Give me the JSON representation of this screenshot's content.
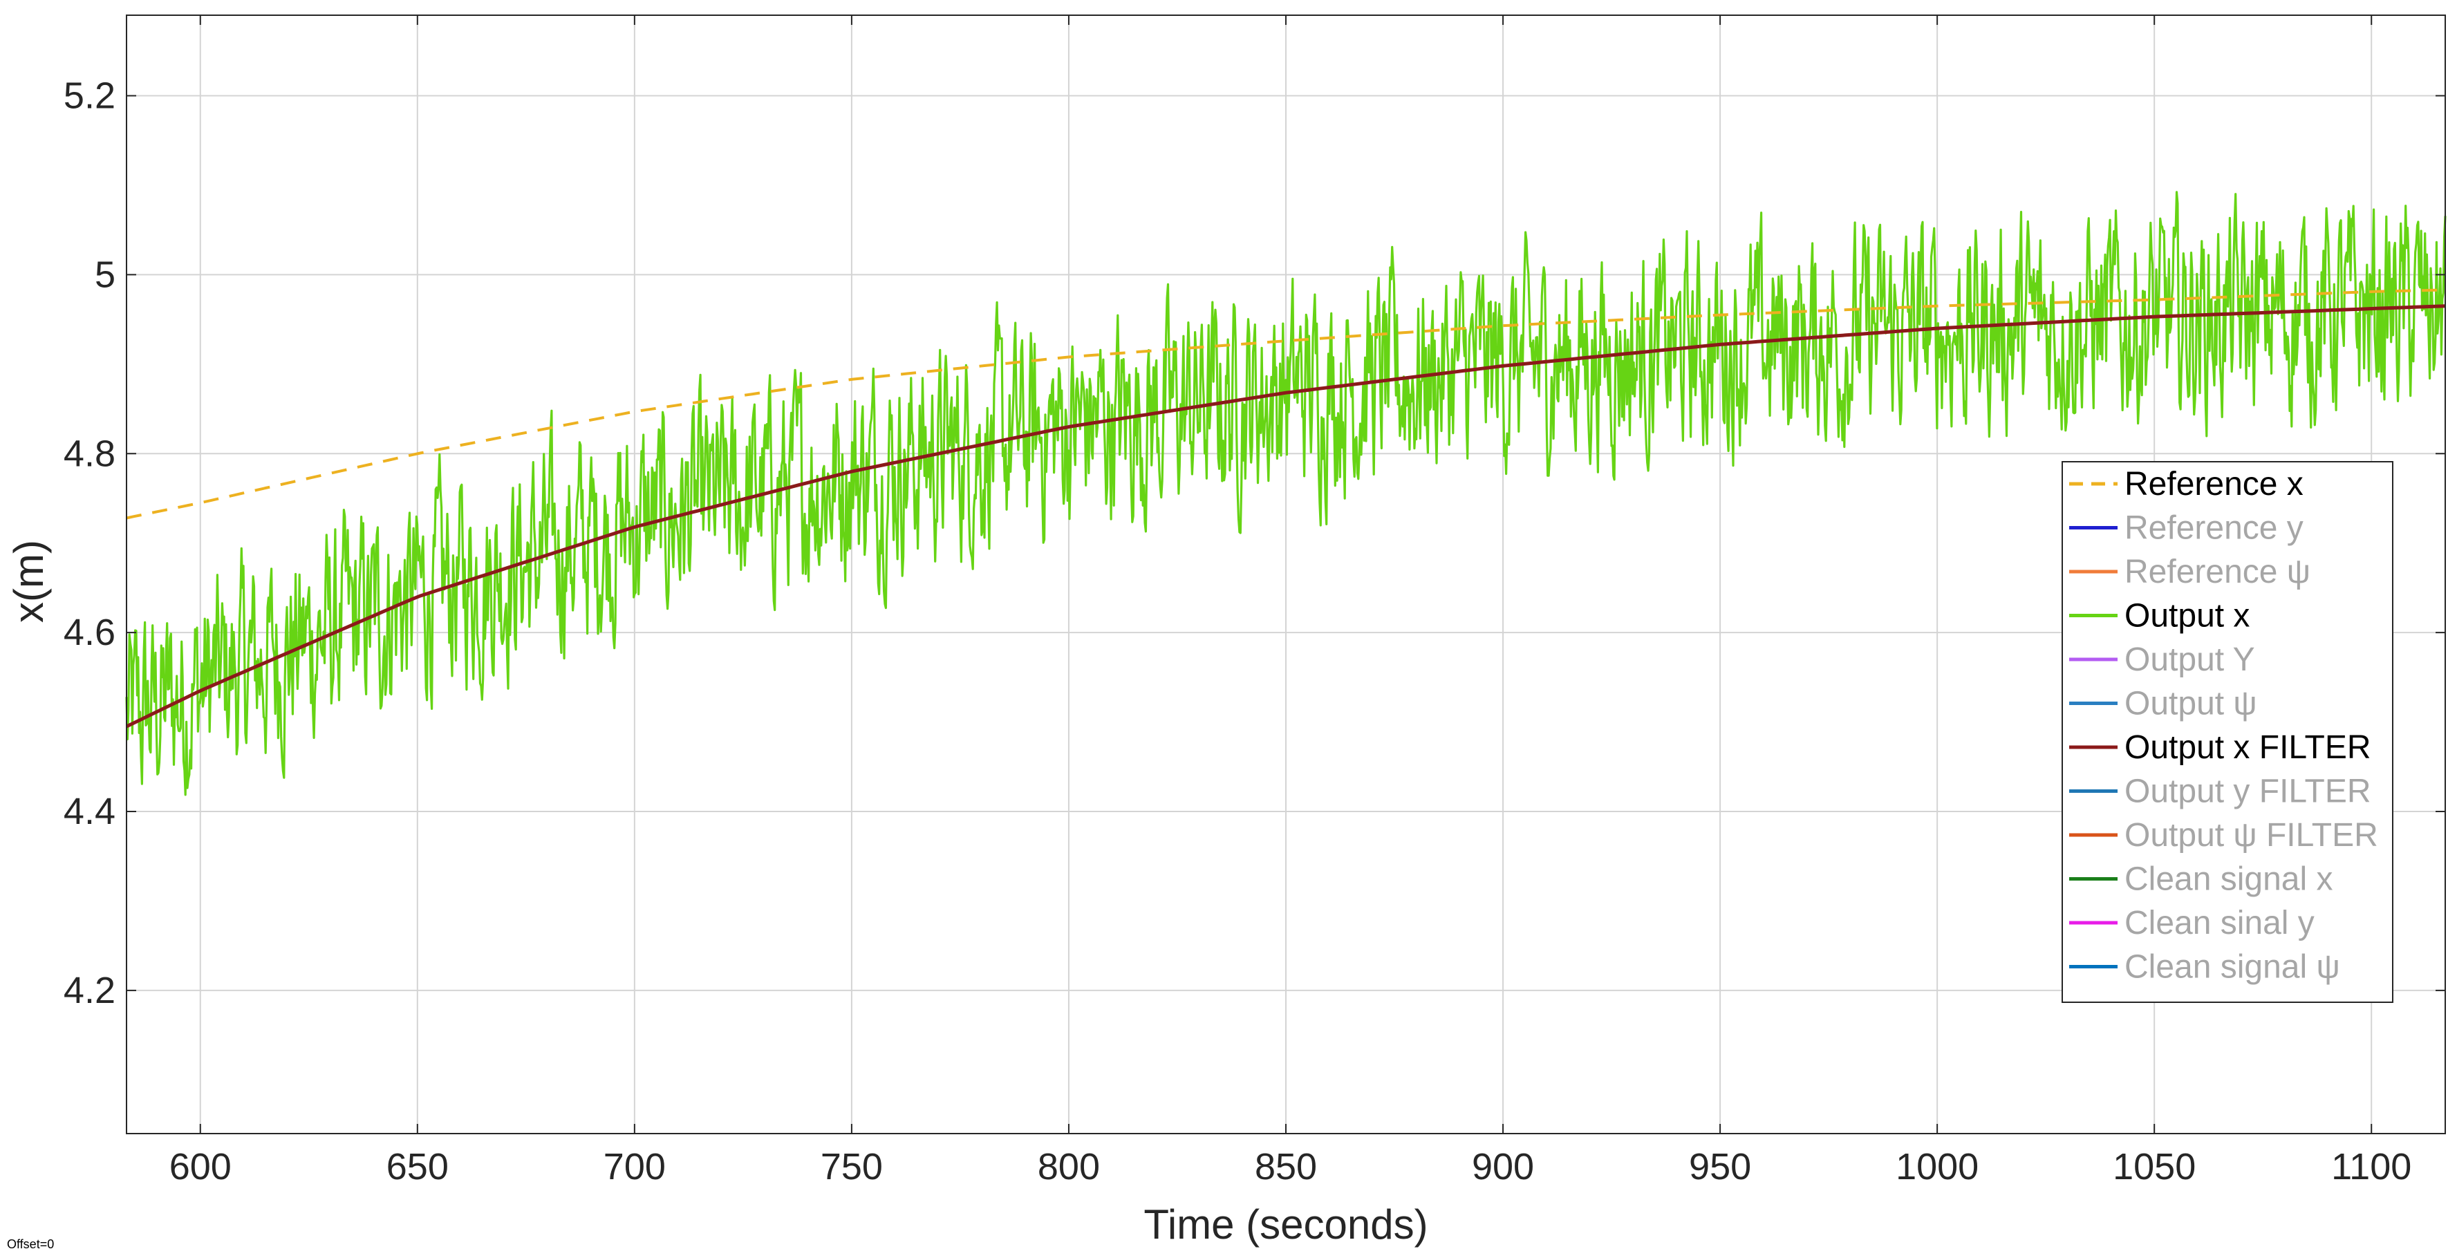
{
  "chart_data": {
    "type": "line",
    "xlabel": "Time (seconds)",
    "ylabel": "x(m)",
    "xlim": [
      583,
      1117
    ],
    "ylim": [
      4.04,
      5.29
    ],
    "x_ticks": [
      600,
      650,
      700,
      750,
      800,
      850,
      900,
      950,
      1000,
      1050,
      1100
    ],
    "y_ticks": [
      4.2,
      4.4,
      4.6,
      4.8,
      5,
      5.2
    ],
    "x_tick_labels": [
      "600",
      "650",
      "700",
      "750",
      "800",
      "850",
      "900",
      "950",
      "1000",
      "1050",
      "1100"
    ],
    "y_tick_labels": [
      "4.2",
      "4.4",
      "4.6",
      "4.8",
      "5",
      "5.2"
    ],
    "grid": true,
    "legend_position": "right",
    "footnote": "Offset=0",
    "series": [
      {
        "name": "Reference x",
        "color": "#EDB120",
        "style": "dashed",
        "active": true,
        "x": [
          583,
          600,
          650,
          700,
          750,
          800,
          850,
          900,
          950,
          1000,
          1050,
          1100,
          1117
        ],
        "y": [
          4.728,
          4.745,
          4.8,
          4.847,
          4.883,
          4.908,
          4.926,
          4.943,
          4.955,
          4.965,
          4.972,
          4.981,
          4.983
        ]
      },
      {
        "name": "Reference y",
        "color": "#1F1FD0",
        "style": "solid",
        "active": false,
        "x": [],
        "y": []
      },
      {
        "name": "Reference ψ",
        "color": "#F07C3A",
        "style": "solid",
        "active": false,
        "x": [],
        "y": []
      },
      {
        "name": "Output x",
        "color": "#66D414",
        "style": "noisy",
        "active": true,
        "x": [
          583,
          600,
          650,
          700,
          750,
          800,
          850,
          900,
          950,
          1000,
          1050,
          1100,
          1117
        ],
        "y": [
          4.5,
          4.54,
          4.64,
          4.72,
          4.78,
          4.83,
          4.87,
          4.9,
          4.92,
          4.94,
          4.95,
          4.96,
          4.965
        ],
        "noise_amplitude": 0.09
      },
      {
        "name": "Output Y",
        "color": "#B35CF2",
        "style": "solid",
        "active": false,
        "x": [],
        "y": []
      },
      {
        "name": "Output ψ",
        "color": "#2A7FC1",
        "style": "solid",
        "active": false,
        "x": [],
        "y": []
      },
      {
        "name": "Output x FILTER",
        "color": "#8B1A1A",
        "style": "solid",
        "active": true,
        "x": [
          583,
          600,
          650,
          700,
          750,
          800,
          850,
          900,
          950,
          1000,
          1050,
          1100,
          1117
        ],
        "y": [
          4.495,
          4.535,
          4.64,
          4.718,
          4.78,
          4.83,
          4.868,
          4.898,
          4.922,
          4.94,
          4.953,
          4.962,
          4.965
        ]
      },
      {
        "name": "Output y FILTER",
        "color": "#1F77B4",
        "style": "solid",
        "active": false,
        "x": [],
        "y": []
      },
      {
        "name": "Output ψ FILTER",
        "color": "#D95319",
        "style": "solid",
        "active": false,
        "x": [],
        "y": []
      },
      {
        "name": "Clean signal x",
        "color": "#1A7F1A",
        "style": "solid",
        "active": false,
        "x": [],
        "y": []
      },
      {
        "name": "Clean sinal y",
        "color": "#E81CE8",
        "style": "solid",
        "active": false,
        "x": [],
        "y": []
      },
      {
        "name": "Clean signal ψ",
        "color": "#0072BD",
        "style": "solid",
        "active": false,
        "x": [],
        "y": []
      }
    ]
  },
  "colors": {
    "grid": "#D4D4D4",
    "axis": "#262626",
    "legend_active_text": "#000000",
    "legend_inactive_text": "#A6A6A6"
  }
}
